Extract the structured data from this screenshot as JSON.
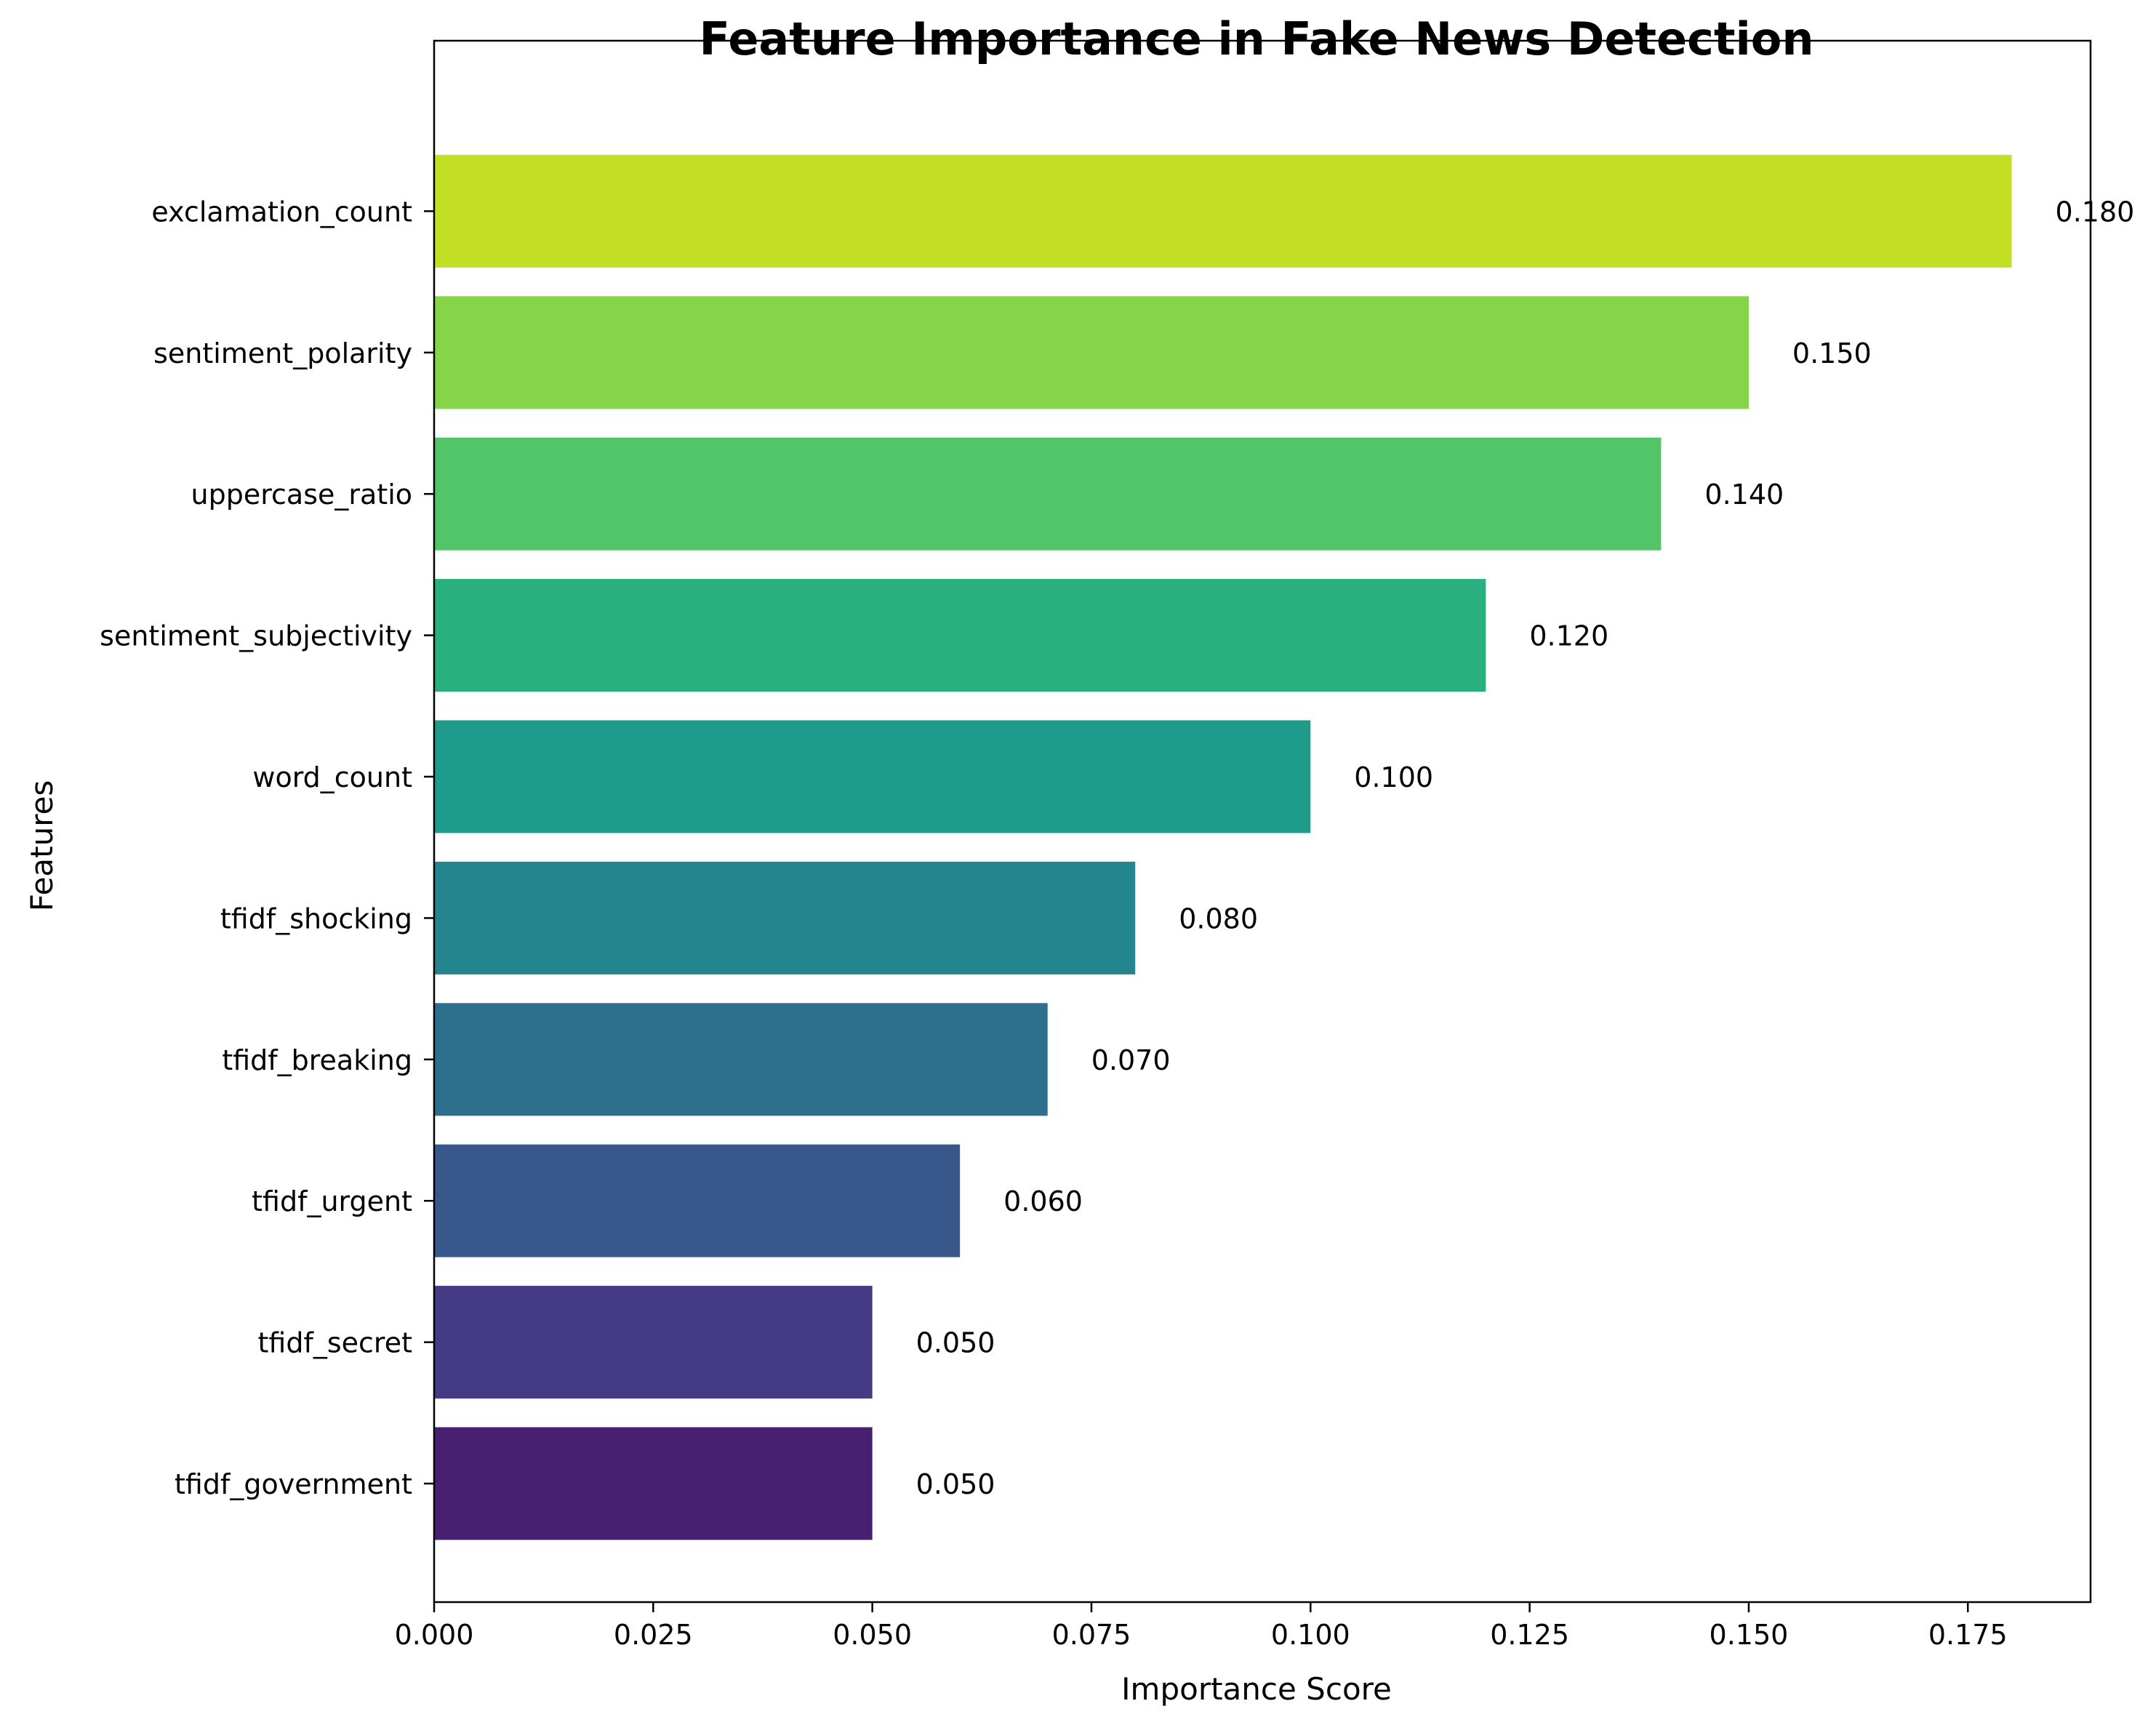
{
  "chart_data": {
    "type": "bar",
    "orientation": "horizontal",
    "title": "Feature Importance in Fake News Detection",
    "xlabel": "Importance Score",
    "ylabel": "Features",
    "categories": [
      "tfidf_government",
      "tfidf_secret",
      "tfidf_urgent",
      "tfidf_breaking",
      "tfidf_shocking",
      "word_count",
      "sentiment_subjectivity",
      "uppercase_ratio",
      "sentiment_polarity",
      "exclamation_count"
    ],
    "values": [
      0.05,
      0.05,
      0.06,
      0.07,
      0.08,
      0.1,
      0.12,
      0.14,
      0.15,
      0.18
    ],
    "value_labels": [
      "0.050",
      "0.050",
      "0.060",
      "0.070",
      "0.080",
      "0.100",
      "0.120",
      "0.140",
      "0.150",
      "0.180"
    ],
    "colors": [
      "#482071",
      "#443b84",
      "#38588c",
      "#2d708e",
      "#25858e",
      "#1e9b8a",
      "#2ab07f",
      "#52c569",
      "#86d549",
      "#c2df23"
    ],
    "xlim": [
      0,
      0.189
    ],
    "xticks": [
      0.0,
      0.025,
      0.05,
      0.075,
      0.1,
      0.125,
      0.15,
      0.175
    ],
    "xtick_labels": [
      "0.000",
      "0.025",
      "0.050",
      "0.075",
      "0.100",
      "0.125",
      "0.150",
      "0.175"
    ],
    "grid": false,
    "legend": "none"
  }
}
